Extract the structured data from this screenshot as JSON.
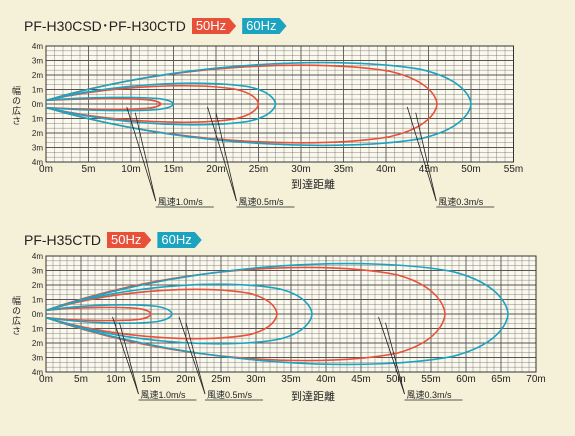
{
  "colors": {
    "hz50": "#e8503a",
    "hz60": "#1ba3c0",
    "grid": "#333333",
    "background": "#f5f1d8"
  },
  "chart_data": [
    {
      "type": "line",
      "title": "PF-H30CSD･PF-H30CTD",
      "legend": [
        {
          "label": "50Hz",
          "color": "#e8503a"
        },
        {
          "label": "60Hz",
          "color": "#1ba3c0"
        }
      ],
      "xlabel": "到達距離",
      "ylabel": "幅の広さ",
      "xlim": [
        0,
        55
      ],
      "ylim": [
        -4,
        4
      ],
      "x_ticks": [
        "0m",
        "5m",
        "10m",
        "15m",
        "20m",
        "25m",
        "30m",
        "35m",
        "40m",
        "45m",
        "50m",
        "55m"
      ],
      "y_ticks": [
        "4m",
        "3m",
        "2m",
        "1m",
        "0m",
        "1m",
        "2m",
        "3m",
        "4m"
      ],
      "series": [
        {
          "name": "風速1.0m/s",
          "hz50": {
            "reach": 13.5,
            "width": 0.4
          },
          "hz60": {
            "reach": 15.0,
            "width": 0.5
          }
        },
        {
          "name": "風速0.5m/s",
          "hz50": {
            "reach": 25.0,
            "width": 1.4
          },
          "hz60": {
            "reach": 27.0,
            "width": 1.6
          }
        },
        {
          "name": "風速0.3m/s",
          "hz50": {
            "reach": 46.0,
            "width": 3.0
          },
          "hz60": {
            "reach": 50.0,
            "width": 3.2
          }
        }
      ],
      "annotations": [
        {
          "label": "風速1.0m/s",
          "x": 11.5
        },
        {
          "label": "風速0.5m/s",
          "x": 21.0
        },
        {
          "label": "風速0.3m/s",
          "x": 44.5
        }
      ]
    },
    {
      "type": "line",
      "title": "PF-H35CTD",
      "legend": [
        {
          "label": "50Hz",
          "color": "#e8503a"
        },
        {
          "label": "60Hz",
          "color": "#1ba3c0"
        }
      ],
      "xlabel": "到達距離",
      "ylabel": "幅の広さ",
      "xlim": [
        0,
        70
      ],
      "ylim": [
        -4,
        4
      ],
      "x_ticks": [
        "0m",
        "5m",
        "10m",
        "15m",
        "20m",
        "25m",
        "30m",
        "35m",
        "40m",
        "45m",
        "50m",
        "55m",
        "60m",
        "65m",
        "70m"
      ],
      "y_ticks": [
        "4m",
        "3m",
        "2m",
        "1m",
        "0m",
        "1m",
        "2m",
        "3m",
        "4m"
      ],
      "series": [
        {
          "name": "風速1.0m/s",
          "hz50": {
            "reach": 15.0,
            "width": 0.5
          },
          "hz60": {
            "reach": 18.0,
            "width": 0.7
          }
        },
        {
          "name": "風速0.5m/s",
          "hz50": {
            "reach": 33.0,
            "width": 1.9
          },
          "hz60": {
            "reach": 38.0,
            "width": 2.3
          }
        },
        {
          "name": "風速0.3m/s",
          "hz50": {
            "reach": 57.0,
            "width": 3.6
          },
          "hz60": {
            "reach": 66.0,
            "width": 3.9
          }
        }
      ],
      "annotations": [
        {
          "label": "風速1.0m/s",
          "x": 11.5
        },
        {
          "label": "風速0.5m/s",
          "x": 21.0
        },
        {
          "label": "風速0.3m/s",
          "x": 49.5
        }
      ]
    }
  ]
}
